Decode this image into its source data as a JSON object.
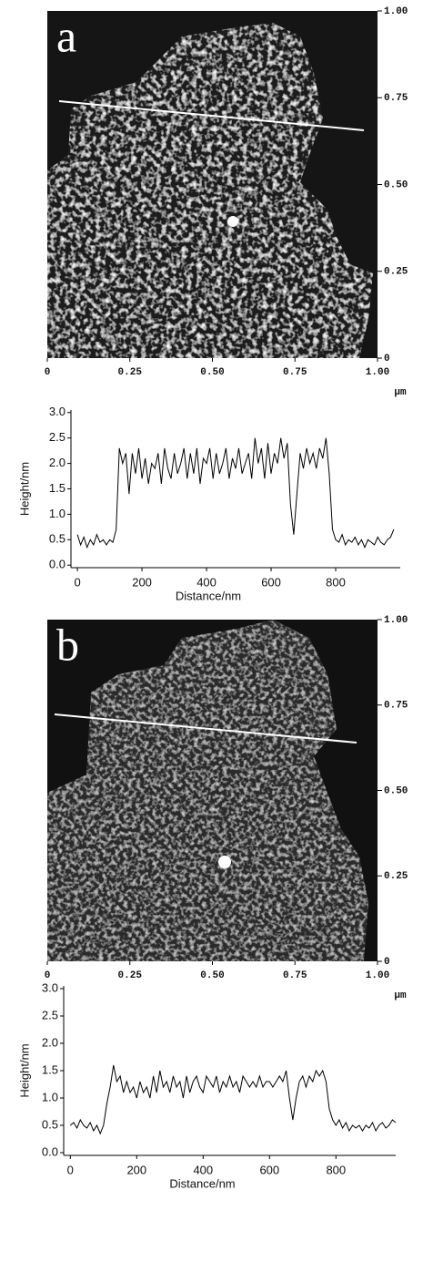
{
  "chart_data": [
    {
      "type": "image",
      "label": "a",
      "unit": "μm",
      "xlim": [
        0,
        1
      ],
      "ylim": [
        0,
        1
      ],
      "xticks": [
        0,
        0.25,
        {
          "value": 0.5,
          "label": "0.50"
        },
        0.75,
        {
          "value": 1,
          "label": "1.00"
        }
      ],
      "yticks": [
        0,
        0.25,
        {
          "value": 0.5,
          "label": "0.50"
        },
        0.75,
        {
          "value": 1,
          "label": "1.00"
        }
      ]
    },
    {
      "type": "line",
      "xlabel": "Distance/nm",
      "ylabel": "Height/nm",
      "color": "#000000",
      "xlim": [
        -20,
        1000
      ],
      "ylim": [
        -0.05,
        3.05
      ],
      "xticks": [
        0,
        200,
        400,
        600,
        800
      ],
      "yticks": [
        {
          "value": 0,
          "label": "0.0"
        },
        0.5,
        {
          "value": 1,
          "label": "1.0"
        },
        1.5,
        {
          "value": 2,
          "label": "2.0"
        },
        2.5,
        {
          "value": 3,
          "label": "3.0"
        }
      ],
      "x": [
        0,
        10,
        20,
        30,
        40,
        50,
        60,
        70,
        80,
        90,
        100,
        110,
        120,
        130,
        140,
        150,
        160,
        170,
        180,
        190,
        200,
        210,
        220,
        230,
        240,
        250,
        260,
        270,
        280,
        290,
        300,
        310,
        320,
        330,
        340,
        350,
        360,
        370,
        380,
        390,
        400,
        410,
        420,
        430,
        440,
        450,
        460,
        470,
        480,
        490,
        500,
        510,
        520,
        530,
        540,
        550,
        560,
        570,
        580,
        590,
        600,
        610,
        620,
        630,
        640,
        650,
        660,
        670,
        680,
        690,
        700,
        710,
        720,
        730,
        740,
        750,
        760,
        770,
        780,
        790,
        800,
        810,
        820,
        830,
        840,
        850,
        860,
        870,
        880,
        890,
        900,
        910,
        920,
        930,
        940,
        950,
        960,
        970,
        980
      ],
      "values": [
        0.6,
        0.4,
        0.55,
        0.35,
        0.5,
        0.4,
        0.6,
        0.45,
        0.5,
        0.4,
        0.5,
        0.45,
        0.7,
        2.3,
        2.0,
        2.2,
        1.4,
        2.2,
        1.8,
        2.3,
        1.7,
        2.1,
        1.6,
        2.0,
        1.9,
        2.2,
        1.6,
        2.3,
        1.9,
        1.7,
        2.2,
        1.8,
        2.0,
        2.3,
        1.7,
        2.2,
        1.8,
        2.3,
        1.6,
        2.1,
        2.0,
        2.3,
        1.7,
        2.2,
        1.8,
        2.0,
        2.3,
        1.7,
        2.1,
        1.9,
        2.3,
        1.8,
        2.0,
        2.2,
        1.7,
        2.5,
        2.0,
        2.3,
        1.7,
        2.4,
        1.8,
        2.2,
        2.0,
        2.5,
        2.1,
        2.4,
        1.2,
        0.6,
        1.4,
        2.2,
        1.9,
        2.3,
        2.0,
        2.2,
        1.9,
        2.3,
        2.1,
        2.5,
        1.8,
        0.7,
        0.5,
        0.45,
        0.6,
        0.4,
        0.5,
        0.45,
        0.55,
        0.4,
        0.5,
        0.35,
        0.5,
        0.45,
        0.4,
        0.55,
        0.45,
        0.4,
        0.5,
        0.55,
        0.7
      ]
    },
    {
      "type": "image",
      "label": "b",
      "unit": "μm",
      "xlim": [
        0,
        1
      ],
      "ylim": [
        0,
        1
      ],
      "xticks": [
        0,
        0.25,
        {
          "value": 0.5,
          "label": "0.50"
        },
        0.75,
        {
          "value": 1,
          "label": "1.00"
        }
      ],
      "yticks": [
        0,
        0.25,
        {
          "value": 0.5,
          "label": "0.50"
        },
        0.75,
        {
          "value": 1,
          "label": "1.00"
        }
      ]
    },
    {
      "type": "line",
      "xlabel": "Distance/nm",
      "ylabel": "Height/nm",
      "color": "#000000",
      "xlim": [
        -20,
        980
      ],
      "ylim": [
        -0.05,
        3.05
      ],
      "xticks": [
        0,
        200,
        400,
        600,
        800
      ],
      "yticks": [
        {
          "value": 0,
          "label": "0.0"
        },
        0.5,
        {
          "value": 1,
          "label": "1.0"
        },
        1.5,
        {
          "value": 2,
          "label": "2.0"
        },
        2.5,
        {
          "value": 3,
          "label": "3.0"
        }
      ],
      "x": [
        0,
        10,
        20,
        30,
        40,
        50,
        60,
        70,
        80,
        90,
        100,
        110,
        120,
        130,
        140,
        150,
        160,
        170,
        180,
        190,
        200,
        210,
        220,
        230,
        240,
        250,
        260,
        270,
        280,
        290,
        300,
        310,
        320,
        330,
        340,
        350,
        360,
        370,
        380,
        390,
        400,
        410,
        420,
        430,
        440,
        450,
        460,
        470,
        480,
        490,
        500,
        510,
        520,
        530,
        540,
        550,
        560,
        570,
        580,
        590,
        600,
        610,
        620,
        630,
        640,
        650,
        660,
        670,
        680,
        690,
        700,
        710,
        720,
        730,
        740,
        750,
        760,
        770,
        780,
        790,
        800,
        810,
        820,
        830,
        840,
        850,
        860,
        870,
        880,
        890,
        900,
        910,
        920,
        930,
        940,
        950,
        960,
        970,
        980
      ],
      "values": [
        0.5,
        0.55,
        0.45,
        0.6,
        0.5,
        0.45,
        0.55,
        0.4,
        0.5,
        0.35,
        0.5,
        0.9,
        1.2,
        1.6,
        1.3,
        1.4,
        1.1,
        1.3,
        1.1,
        1.2,
        1.0,
        1.3,
        1.1,
        1.2,
        1.0,
        1.4,
        1.1,
        1.5,
        1.2,
        1.3,
        1.1,
        1.4,
        1.2,
        1.3,
        1.0,
        1.4,
        1.1,
        1.3,
        1.4,
        1.2,
        1.1,
        1.4,
        1.3,
        1.2,
        1.4,
        1.1,
        1.3,
        1.2,
        1.4,
        1.2,
        1.3,
        1.1,
        1.4,
        1.3,
        1.2,
        1.3,
        1.2,
        1.4,
        1.2,
        1.3,
        1.3,
        1.2,
        1.3,
        1.4,
        1.3,
        1.5,
        1.0,
        0.6,
        1.0,
        1.3,
        1.4,
        1.2,
        1.4,
        1.3,
        1.5,
        1.4,
        1.5,
        1.3,
        0.8,
        0.6,
        0.5,
        0.6,
        0.45,
        0.55,
        0.4,
        0.5,
        0.45,
        0.5,
        0.4,
        0.5,
        0.45,
        0.55,
        0.4,
        0.5,
        0.55,
        0.45,
        0.5,
        0.6,
        0.55
      ]
    }
  ]
}
